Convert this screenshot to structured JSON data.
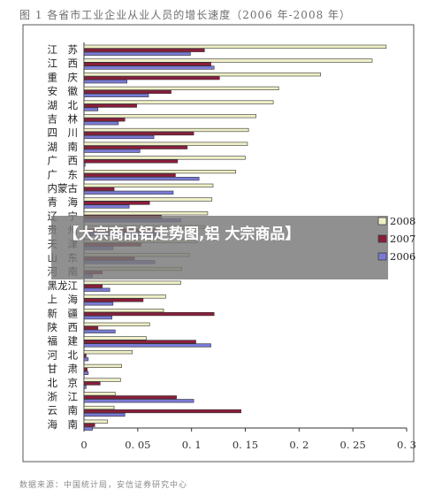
{
  "title": "图 1  各省市工业企业从业人员的增长速度（2006 年-2008 年）",
  "source": "数据来源：中国统计局，安信证券研究中心",
  "overlay": {
    "text": "【大宗商品铝走势图,铝 大宗商品】"
  },
  "colors": {
    "s2008": "#f0f0c8",
    "s2007": "#8a1e3a",
    "s2006": "#7a7ad6",
    "edge": "#333333"
  },
  "chart_data": {
    "type": "bar",
    "orientation": "horizontal",
    "categories": [
      "江　苏",
      "江　西",
      "重　庆",
      "安　徽",
      "湖　北",
      "吉　林",
      "四　川",
      "湖　南",
      "广　西",
      "广　东",
      "内蒙古",
      "青　海",
      "辽　宁",
      "贵　州",
      "天　津",
      "山　东",
      "河　南",
      "黑龙江",
      "上　海",
      "新　疆",
      "陕　西",
      "福　建",
      "河　北",
      "甘　肃",
      "北　京",
      "浙　江",
      "云　南",
      "海　南"
    ],
    "series": [
      {
        "name": "2008",
        "values": [
          0.281,
          0.268,
          0.22,
          0.181,
          0.176,
          0.16,
          0.153,
          0.152,
          0.15,
          0.141,
          0.12,
          0.119,
          0.115,
          0.112,
          0.105,
          0.098,
          0.091,
          0.09,
          0.076,
          0.074,
          0.061,
          0.058,
          0.045,
          0.035,
          0.034,
          0.029,
          0.028,
          0.022
        ]
      },
      {
        "name": "2007",
        "values": [
          0.112,
          0.118,
          0.126,
          0.081,
          0.049,
          0.038,
          0.102,
          0.096,
          0.087,
          0.085,
          0.028,
          0.061,
          0.072,
          0.068,
          0.053,
          0.047,
          0.017,
          0.017,
          0.055,
          0.121,
          0.013,
          0.104,
          0.002,
          0.003,
          0.015,
          0.086,
          0.146,
          0.01
        ]
      },
      {
        "name": "2006",
        "values": [
          0.099,
          0.121,
          0.04,
          0.06,
          0.013,
          0.032,
          0.065,
          0.052,
          0.001,
          0.107,
          0.083,
          0.042,
          0.09,
          0.073,
          0.027,
          0.066,
          0.008,
          0.024,
          0.027,
          0.026,
          0.029,
          0.118,
          0.004,
          0.004,
          0.002,
          0.102,
          0.038,
          0.008
        ]
      }
    ],
    "x_ticks": [
      "0",
      "0. 05",
      "0. 1",
      "0. 15",
      "0. 2",
      "0. 25",
      "0. 3"
    ],
    "xlim": [
      0,
      0.3
    ],
    "legend": [
      "2008",
      "2007",
      "2006"
    ],
    "legend_position": "right",
    "grid": false
  }
}
